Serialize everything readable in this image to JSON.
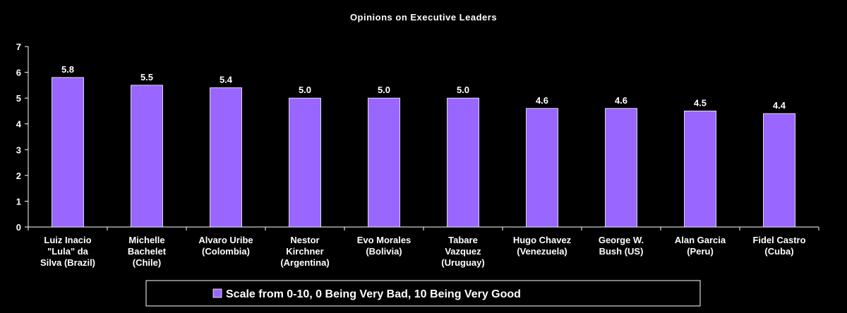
{
  "chart_data": {
    "type": "bar",
    "title": "Opinions on Executive Leaders",
    "categories": [
      [
        "Luiz Inacio",
        "\"Lula\" da",
        "Silva (Brazil)"
      ],
      [
        "Michelle",
        "Bachelet",
        "(Chile)"
      ],
      [
        "Alvaro Uribe",
        "(Colombia)"
      ],
      [
        "Nestor",
        "Kirchner",
        "(Argentina)"
      ],
      [
        "Evo Morales",
        "(Bolivia)"
      ],
      [
        "Tabare",
        "Vazquez",
        "(Uruguay)"
      ],
      [
        "Hugo Chavez",
        "(Venezuela)"
      ],
      [
        "George W.",
        "Bush (US)"
      ],
      [
        "Alan Garcia",
        "(Peru)"
      ],
      [
        "Fidel Castro",
        "(Cuba)"
      ]
    ],
    "series": [
      {
        "name": "Scale from 0-10, 0 Being Very Bad, 10 Being Very Good",
        "values": [
          5.8,
          5.5,
          5.4,
          5.0,
          5.0,
          5.0,
          4.6,
          4.6,
          4.5,
          4.4
        ],
        "data_labels": [
          "5.8",
          "5.5",
          "5.4",
          "5.0",
          "5.0",
          "5.0",
          "4.6",
          "4.6",
          "4.5",
          "4.4"
        ]
      }
    ],
    "xlabel": "",
    "ylabel": "",
    "ylim": [
      0,
      7
    ],
    "yticks": [
      "0",
      "1",
      "2",
      "3",
      "4",
      "5",
      "6",
      "7"
    ],
    "grid": false,
    "legend_position": "bottom",
    "colors": {
      "background": "#000000",
      "bar_fill": "#9966ff",
      "bar_edge": "#ffffff",
      "axis": "#ffffff",
      "text": "#ffffff"
    }
  }
}
